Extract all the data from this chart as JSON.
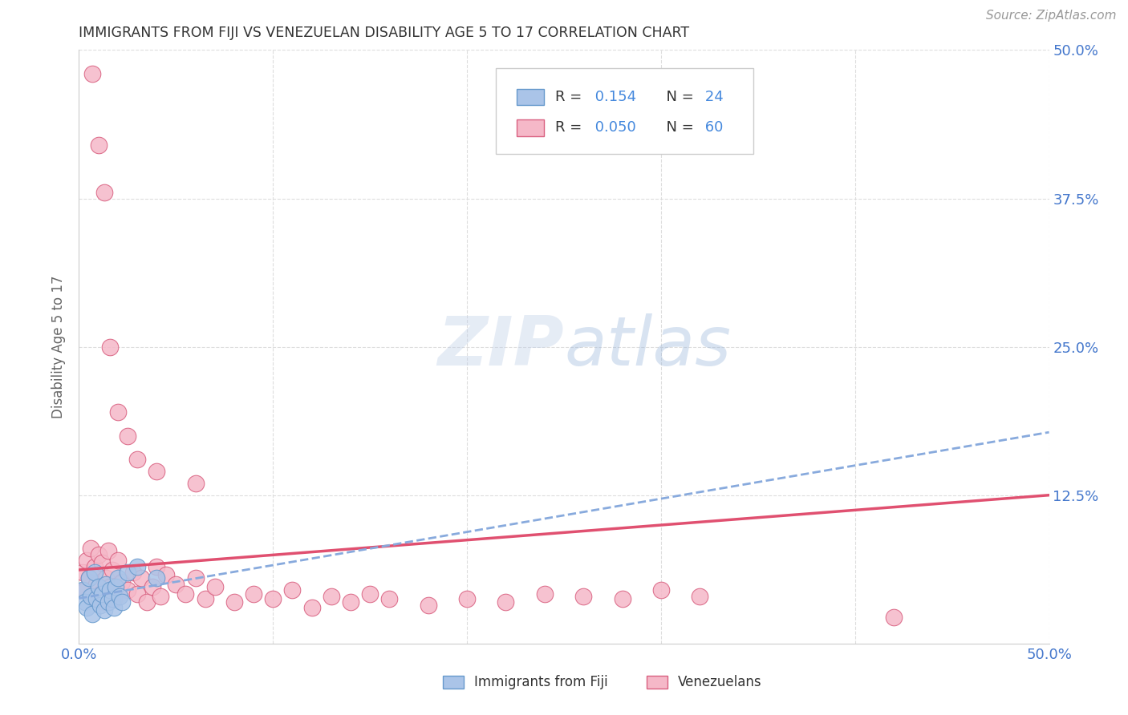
{
  "title": "IMMIGRANTS FROM FIJI VS VENEZUELAN DISABILITY AGE 5 TO 17 CORRELATION CHART",
  "source": "Source: ZipAtlas.com",
  "ylabel": "Disability Age 5 to 17",
  "ytick_positions": [
    0,
    0.125,
    0.25,
    0.375,
    0.5
  ],
  "xtick_positions": [
    0,
    0.1,
    0.2,
    0.3,
    0.4,
    0.5
  ],
  "xlim": [
    0,
    0.5
  ],
  "ylim": [
    0,
    0.5
  ],
  "legend_fiji_r": "0.154",
  "legend_fiji_n": "24",
  "legend_ven_r": "0.050",
  "legend_ven_n": "60",
  "fiji_color": "#aac4e8",
  "fiji_edge_color": "#6699cc",
  "ven_color": "#f5b8c8",
  "ven_edge_color": "#d96080",
  "fiji_trend_color": "#88aadd",
  "ven_trend_color": "#e05070",
  "fiji_trend_x0": 0.0,
  "fiji_trend_y0": 0.038,
  "fiji_trend_x1": 0.5,
  "fiji_trend_y1": 0.178,
  "ven_trend_x0": 0.0,
  "ven_trend_y0": 0.062,
  "ven_trend_x1": 0.5,
  "ven_trend_y1": 0.125,
  "fiji_scatter_x": [
    0.002,
    0.003,
    0.004,
    0.005,
    0.006,
    0.007,
    0.008,
    0.009,
    0.01,
    0.011,
    0.012,
    0.013,
    0.014,
    0.015,
    0.016,
    0.017,
    0.018,
    0.019,
    0.02,
    0.021,
    0.022,
    0.025,
    0.03,
    0.04
  ],
  "fiji_scatter_y": [
    0.045,
    0.035,
    0.03,
    0.055,
    0.04,
    0.025,
    0.06,
    0.038,
    0.048,
    0.032,
    0.042,
    0.028,
    0.05,
    0.035,
    0.045,
    0.038,
    0.03,
    0.048,
    0.055,
    0.04,
    0.035,
    0.06,
    0.065,
    0.055
  ],
  "ven_scatter_x": [
    0.002,
    0.003,
    0.004,
    0.005,
    0.006,
    0.007,
    0.008,
    0.009,
    0.01,
    0.011,
    0.012,
    0.013,
    0.014,
    0.015,
    0.016,
    0.017,
    0.018,
    0.02,
    0.022,
    0.025,
    0.028,
    0.03,
    0.032,
    0.035,
    0.038,
    0.04,
    0.042,
    0.045,
    0.05,
    0.055,
    0.06,
    0.065,
    0.07,
    0.08,
    0.09,
    0.1,
    0.11,
    0.12,
    0.13,
    0.14,
    0.15,
    0.16,
    0.18,
    0.2,
    0.22,
    0.24,
    0.26,
    0.28,
    0.3,
    0.32,
    0.007,
    0.01,
    0.013,
    0.016,
    0.02,
    0.025,
    0.03,
    0.04,
    0.42,
    0.06
  ],
  "ven_scatter_y": [
    0.06,
    0.045,
    0.07,
    0.055,
    0.08,
    0.04,
    0.065,
    0.05,
    0.075,
    0.042,
    0.068,
    0.035,
    0.055,
    0.078,
    0.048,
    0.062,
    0.038,
    0.07,
    0.052,
    0.045,
    0.06,
    0.042,
    0.055,
    0.035,
    0.048,
    0.065,
    0.04,
    0.058,
    0.05,
    0.042,
    0.055,
    0.038,
    0.048,
    0.035,
    0.042,
    0.038,
    0.045,
    0.03,
    0.04,
    0.035,
    0.042,
    0.038,
    0.032,
    0.038,
    0.035,
    0.042,
    0.04,
    0.038,
    0.045,
    0.04,
    0.48,
    0.42,
    0.38,
    0.25,
    0.195,
    0.175,
    0.155,
    0.145,
    0.022,
    0.135
  ],
  "background_color": "#ffffff",
  "grid_color": "#dddddd",
  "title_color": "#333333",
  "axis_label_color": "#4477cc"
}
